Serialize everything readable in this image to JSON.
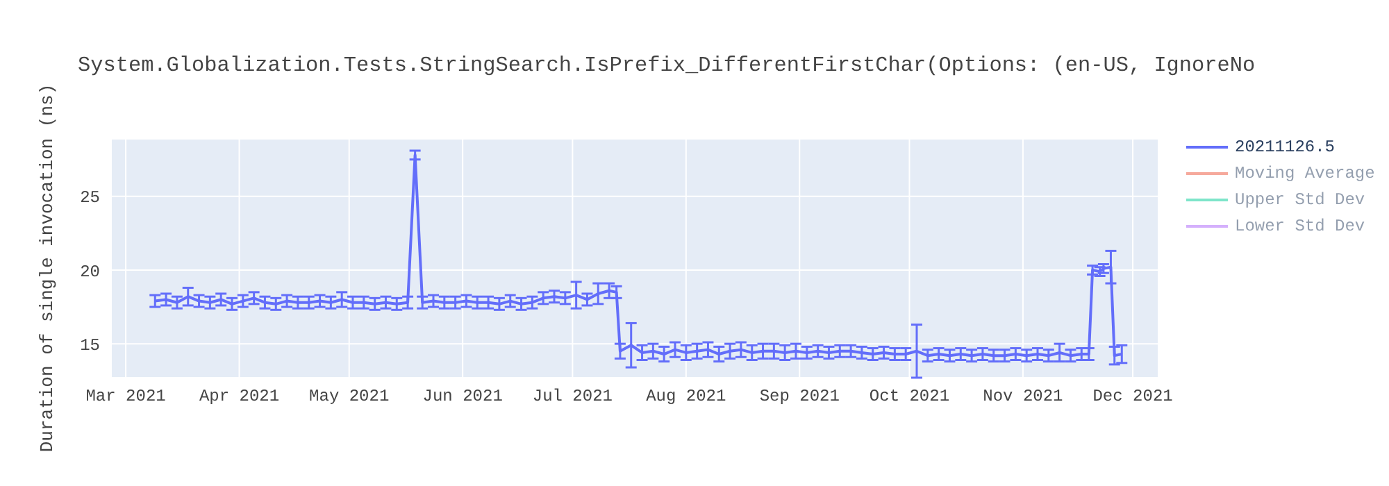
{
  "chart_data": {
    "type": "line",
    "title": "System.Globalization.Tests.StringSearch.IsPrefix_DifferentFirstChar(Options: (en-US, IgnoreNo",
    "ylabel": "Duration of single invocation (ns)",
    "x": [
      "2021-03-09",
      "2021-03-12",
      "2021-03-15",
      "2021-03-18",
      "2021-03-21",
      "2021-03-24",
      "2021-03-27",
      "2021-03-30",
      "2021-04-02",
      "2021-04-05",
      "2021-04-08",
      "2021-04-11",
      "2021-04-14",
      "2021-04-17",
      "2021-04-20",
      "2021-04-23",
      "2021-04-26",
      "2021-04-29",
      "2021-05-02",
      "2021-05-05",
      "2021-05-08",
      "2021-05-11",
      "2021-05-14",
      "2021-05-17",
      "2021-05-19",
      "2021-05-21",
      "2021-05-24",
      "2021-05-27",
      "2021-05-30",
      "2021-06-02",
      "2021-06-05",
      "2021-06-08",
      "2021-06-11",
      "2021-06-14",
      "2021-06-17",
      "2021-06-20",
      "2021-06-23",
      "2021-06-26",
      "2021-06-29",
      "2021-07-02",
      "2021-07-05",
      "2021-07-08",
      "2021-07-11",
      "2021-07-13",
      "2021-07-14",
      "2021-07-17",
      "2021-07-20",
      "2021-07-23",
      "2021-07-26",
      "2021-07-29",
      "2021-08-01",
      "2021-08-04",
      "2021-08-07",
      "2021-08-10",
      "2021-08-13",
      "2021-08-16",
      "2021-08-19",
      "2021-08-22",
      "2021-08-25",
      "2021-08-28",
      "2021-08-31",
      "2021-09-03",
      "2021-09-06",
      "2021-09-09",
      "2021-09-12",
      "2021-09-15",
      "2021-09-18",
      "2021-09-21",
      "2021-09-24",
      "2021-09-27",
      "2021-09-30",
      "2021-10-03",
      "2021-10-06",
      "2021-10-09",
      "2021-10-12",
      "2021-10-15",
      "2021-10-18",
      "2021-10-21",
      "2021-10-24",
      "2021-10-27",
      "2021-10-30",
      "2021-11-02",
      "2021-11-05",
      "2021-11-08",
      "2021-11-11",
      "2021-11-14",
      "2021-11-17",
      "2021-11-19",
      "2021-11-20",
      "2021-11-22",
      "2021-11-23",
      "2021-11-25",
      "2021-11-26",
      "2021-11-28"
    ],
    "series": [
      {
        "name": "20211126.5",
        "color": "#636efa",
        "values": [
          17.9,
          18.0,
          17.8,
          18.2,
          17.9,
          17.8,
          18.0,
          17.7,
          17.9,
          18.1,
          17.8,
          17.7,
          17.9,
          17.8,
          17.8,
          17.9,
          17.8,
          18.0,
          17.8,
          17.8,
          17.7,
          17.8,
          17.7,
          17.8,
          27.8,
          17.8,
          17.9,
          17.8,
          17.8,
          17.9,
          17.8,
          17.8,
          17.7,
          17.9,
          17.7,
          17.8,
          18.1,
          18.2,
          18.1,
          18.3,
          18.0,
          18.4,
          18.6,
          18.5,
          14.5,
          14.9,
          14.4,
          14.5,
          14.3,
          14.6,
          14.4,
          14.5,
          14.6,
          14.3,
          14.5,
          14.6,
          14.4,
          14.5,
          14.5,
          14.4,
          14.5,
          14.4,
          14.5,
          14.4,
          14.5,
          14.5,
          14.4,
          14.3,
          14.4,
          14.3,
          14.3,
          14.5,
          14.2,
          14.3,
          14.2,
          14.3,
          14.2,
          14.3,
          14.2,
          14.2,
          14.3,
          14.2,
          14.3,
          14.2,
          14.4,
          14.2,
          14.3,
          14.3,
          20.0,
          19.9,
          20.1,
          20.2,
          14.2,
          14.3
        ],
        "errors": [
          0.4,
          0.4,
          0.4,
          0.6,
          0.4,
          0.4,
          0.4,
          0.4,
          0.4,
          0.4,
          0.4,
          0.4,
          0.4,
          0.4,
          0.4,
          0.4,
          0.4,
          0.5,
          0.4,
          0.4,
          0.4,
          0.4,
          0.4,
          0.4,
          0.3,
          0.4,
          0.4,
          0.4,
          0.4,
          0.4,
          0.4,
          0.4,
          0.4,
          0.4,
          0.4,
          0.4,
          0.4,
          0.4,
          0.4,
          0.9,
          0.4,
          0.7,
          0.5,
          0.4,
          0.5,
          1.5,
          0.5,
          0.5,
          0.5,
          0.5,
          0.5,
          0.5,
          0.5,
          0.5,
          0.5,
          0.5,
          0.5,
          0.5,
          0.5,
          0.5,
          0.5,
          0.4,
          0.4,
          0.4,
          0.4,
          0.4,
          0.4,
          0.4,
          0.4,
          0.4,
          0.4,
          1.8,
          0.4,
          0.4,
          0.4,
          0.4,
          0.4,
          0.4,
          0.4,
          0.4,
          0.4,
          0.4,
          0.4,
          0.4,
          0.6,
          0.4,
          0.4,
          0.4,
          0.3,
          0.3,
          0.3,
          1.1,
          0.6,
          0.6
        ]
      },
      {
        "name": "Moving Average",
        "color": "#ef553b",
        "values": [
          null,
          null,
          null,
          null,
          null,
          null,
          null,
          null,
          null,
          null,
          null,
          null,
          null,
          null,
          null,
          null,
          null,
          null,
          null,
          null,
          null,
          null,
          null,
          null,
          null,
          null,
          null,
          null,
          null,
          null,
          null,
          null,
          null,
          null,
          null,
          null,
          null,
          null,
          null,
          null,
          null,
          null,
          null,
          null,
          null,
          null,
          null,
          null,
          null,
          null,
          null,
          null,
          null,
          null,
          null,
          null,
          null,
          null,
          null,
          null,
          null,
          null,
          null,
          null,
          null,
          null,
          null,
          null,
          null,
          null,
          null,
          null,
          null,
          null,
          null,
          null,
          null,
          null,
          null,
          null,
          null,
          null,
          null,
          null,
          null,
          null,
          null,
          null,
          null,
          null,
          null,
          null,
          null,
          null
        ]
      },
      {
        "name": "Upper Std Dev",
        "color": "#00cc96",
        "values": [
          null,
          null,
          null,
          null,
          null,
          null,
          null,
          null,
          null,
          null,
          null,
          null,
          null,
          null,
          null,
          null,
          null,
          null,
          null,
          null,
          null,
          null,
          null,
          null,
          null,
          null,
          null,
          null,
          null,
          null,
          null,
          null,
          null,
          null,
          null,
          null,
          null,
          null,
          null,
          null,
          null,
          null,
          null,
          null,
          null,
          null,
          null,
          null,
          null,
          null,
          null,
          null,
          null,
          null,
          null,
          null,
          null,
          null,
          null,
          null,
          null,
          null,
          null,
          null,
          null,
          null,
          null,
          null,
          null,
          null,
          null,
          null,
          null,
          null,
          null,
          null,
          null,
          null,
          null,
          null,
          null,
          null,
          null,
          null,
          null,
          null,
          null,
          null,
          null,
          null,
          null,
          null,
          null,
          null
        ]
      },
      {
        "name": "Lower Std Dev",
        "color": "#ab63fa",
        "values": [
          null,
          null,
          null,
          null,
          null,
          null,
          null,
          null,
          null,
          null,
          null,
          null,
          null,
          null,
          null,
          null,
          null,
          null,
          null,
          null,
          null,
          null,
          null,
          null,
          null,
          null,
          null,
          null,
          null,
          null,
          null,
          null,
          null,
          null,
          null,
          null,
          null,
          null,
          null,
          null,
          null,
          null,
          null,
          null,
          null,
          null,
          null,
          null,
          null,
          null,
          null,
          null,
          null,
          null,
          null,
          null,
          null,
          null,
          null,
          null,
          null,
          null,
          null,
          null,
          null,
          null,
          null,
          null,
          null,
          null,
          null,
          null,
          null,
          null,
          null,
          null,
          null,
          null,
          null,
          null,
          null,
          null,
          null,
          null,
          null,
          null,
          null,
          null,
          null,
          null,
          null,
          null,
          null,
          null
        ]
      }
    ],
    "xlim": [
      "2021-02-25",
      "2021-12-08"
    ],
    "xticks": [
      {
        "value": "2021-03-01",
        "label": "Mar 2021"
      },
      {
        "value": "2021-04-01",
        "label": "Apr 2021"
      },
      {
        "value": "2021-05-01",
        "label": "May 2021"
      },
      {
        "value": "2021-06-01",
        "label": "Jun 2021"
      },
      {
        "value": "2021-07-01",
        "label": "Jul 2021"
      },
      {
        "value": "2021-08-01",
        "label": "Aug 2021"
      },
      {
        "value": "2021-09-01",
        "label": "Sep 2021"
      },
      {
        "value": "2021-10-01",
        "label": "Oct 2021"
      },
      {
        "value": "2021-11-01",
        "label": "Nov 2021"
      },
      {
        "value": "2021-12-01",
        "label": "Dec 2021"
      }
    ],
    "ylim": [
      12.7,
      28.9
    ],
    "yticks": [
      15,
      20,
      25
    ],
    "grid": true,
    "legend": "top right",
    "marker": "none",
    "line_style": "solid"
  }
}
